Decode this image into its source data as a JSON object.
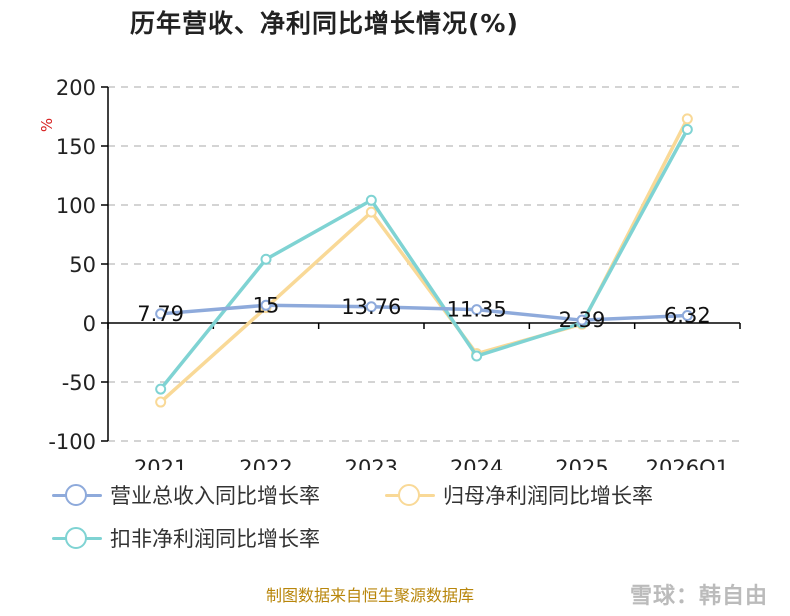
{
  "title": "历年营收、净利同比增长情况(%)",
  "unit_label": "%",
  "source": "制图数据来自恒生聚源数据库",
  "watermark": "雪球：韩自由",
  "colors": {
    "revenue": "#8eaadb",
    "parent_profit": "#f9d997",
    "non_recurring_profit": "#7fd3d3",
    "grid": "#bbbbbb",
    "axis": "#000000"
  },
  "chart_data": {
    "type": "line",
    "title": "历年营收、净利同比增长情况(%)",
    "categories": [
      "2021",
      "2022",
      "2023",
      "2024",
      "2025",
      "2026Q1"
    ],
    "ylim": [
      -100,
      200
    ],
    "yticks": [
      -100,
      -50,
      0,
      50,
      100,
      150,
      200
    ],
    "grid": true,
    "legend_position": "bottom",
    "series": [
      {
        "name": "营业总收入同比增长率",
        "color_key": "revenue",
        "values": [
          7.79,
          15,
          13.76,
          11.35,
          2.39,
          6.32
        ],
        "labels": [
          "7.79",
          "15",
          "13.76",
          "11.35",
          "2.39",
          "6.32"
        ]
      },
      {
        "name": "归母净利润同比增长率",
        "color_key": "parent_profit",
        "values": [
          -67,
          13,
          94,
          -26,
          -1,
          173
        ]
      },
      {
        "name": "扣非净利润同比增长率",
        "color_key": "non_recurring_profit",
        "values": [
          -56,
          54,
          104,
          -28,
          0,
          164
        ]
      }
    ]
  }
}
